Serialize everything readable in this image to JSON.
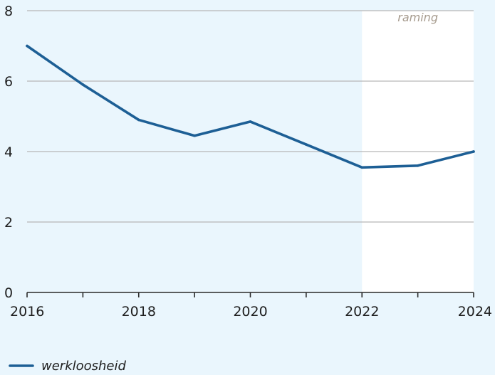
{
  "chart_data": {
    "type": "line",
    "title": "",
    "xlabel": "",
    "ylabel": "",
    "x": [
      2016,
      2017,
      2018,
      2019,
      2020,
      2021,
      2022,
      2023,
      2024
    ],
    "series": [
      {
        "name": "werkloosheid",
        "values": [
          7.0,
          5.9,
          4.9,
          4.45,
          4.85,
          4.2,
          3.55,
          3.6,
          4.0
        ]
      }
    ],
    "xlim": [
      2016,
      2024
    ],
    "ylim": [
      0,
      8
    ],
    "x_ticks": [
      2016,
      2017,
      2018,
      2019,
      2020,
      2021,
      2022,
      2023,
      2024
    ],
    "x_tick_labels": [
      "2016",
      "",
      "2018",
      "",
      "2020",
      "",
      "2022",
      "",
      "2024"
    ],
    "y_ticks": [
      0,
      2,
      4,
      6,
      8
    ],
    "y_tick_labels": [
      "0",
      "2",
      "4",
      "6",
      "8"
    ],
    "grid": true,
    "legend": "bottom-left",
    "forecast": {
      "label": "raming",
      "from": 2022,
      "to": 2024
    },
    "colors": {
      "background": "#eaf6fd",
      "forecast_background": "#ffffff",
      "line": "#1d5f95",
      "grid": "#b7b7b7",
      "axis": "#2a2a2a",
      "forecast_label": "#a79c8f"
    }
  }
}
